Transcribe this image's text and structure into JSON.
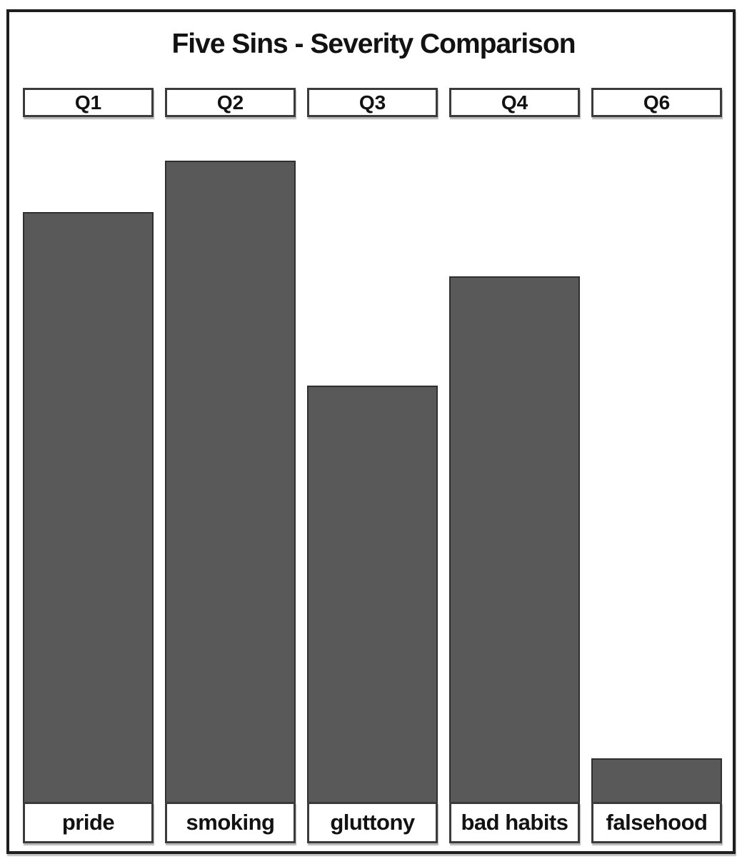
{
  "page": {
    "background": "#ffffff"
  },
  "colors": {
    "bar_fill": "#595959",
    "bar_border": "#2f2f2f",
    "box_bg": "#ffffff",
    "box_border": "#3b3b3b",
    "frame_border": "#1e1e1e",
    "text": "#121212",
    "background": "#ffffff"
  },
  "chart_data": {
    "type": "bar",
    "orientation": "vertical",
    "title": "Five Sins - Severity Comparison",
    "column_headers": [
      "Q1",
      "Q2",
      "Q3",
      "Q4",
      "Q6"
    ],
    "categories": [
      "pride",
      "smoking",
      "gluttony",
      "bad habits",
      "falsehood"
    ],
    "values": [
      92,
      100,
      65,
      82,
      7
    ],
    "xlabel": "",
    "ylabel": "",
    "ylim": [
      0,
      100
    ],
    "axis_shown": false,
    "grid": false,
    "legend": false
  }
}
